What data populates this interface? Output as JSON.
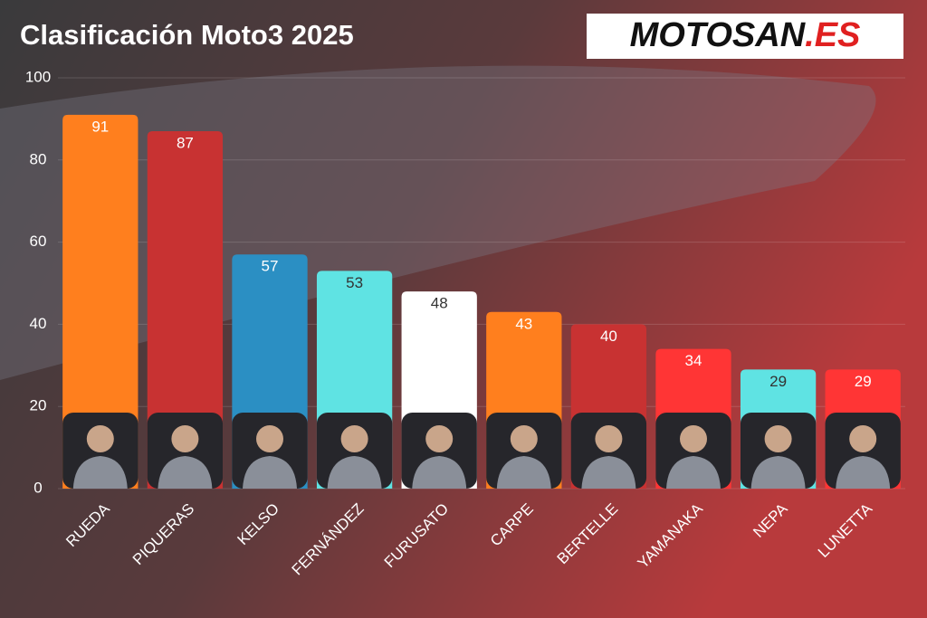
{
  "chart_data": {
    "type": "bar",
    "title": "Clasificación Moto3 2025",
    "logo": {
      "main": "MOTOSAN",
      "accent": ".ES"
    },
    "categories": [
      "RUEDA",
      "PIQUERAS",
      "KELSO",
      "FERNÁNDEZ",
      "FURUSATO",
      "CARPE",
      "BERTELLE",
      "YAMANAKA",
      "NEPA",
      "LUNETTA"
    ],
    "values": [
      91,
      87,
      57,
      53,
      48,
      43,
      40,
      34,
      29,
      29
    ],
    "colors": [
      "#ff7f1e",
      "#c83232",
      "#2b8fc3",
      "#5fe3e3",
      "#ffffff",
      "#ff7f1e",
      "#c83232",
      "#ff3535",
      "#5fe3e3",
      "#ff3535"
    ],
    "ylim": [
      0,
      100
    ],
    "yticks": [
      0,
      20,
      40,
      60,
      80,
      100
    ],
    "grid": true
  }
}
